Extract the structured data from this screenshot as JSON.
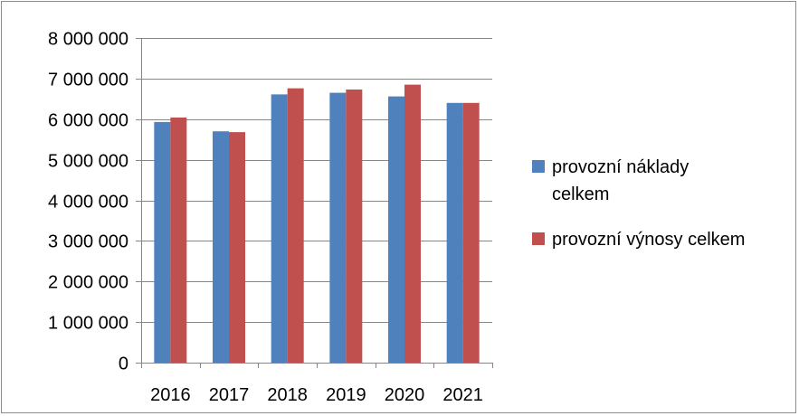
{
  "chart_data": {
    "type": "bar",
    "title": "",
    "xlabel": "",
    "ylabel": "",
    "categories": [
      "2016",
      "2017",
      "2018",
      "2019",
      "2020",
      "2021"
    ],
    "series": [
      {
        "name": "provozní náklady celkem",
        "color": "#4f81bd",
        "values": [
          5930000,
          5700000,
          6610000,
          6650000,
          6560000,
          6400000
        ]
      },
      {
        "name": "provozní výnosy celkem",
        "color": "#c0504d",
        "values": [
          6040000,
          5680000,
          6760000,
          6730000,
          6850000,
          6400000
        ]
      }
    ],
    "ylim": [
      0,
      8000000
    ],
    "yticks": [
      0,
      1000000,
      2000000,
      3000000,
      4000000,
      5000000,
      6000000,
      7000000,
      8000000
    ],
    "ytick_labels": [
      "0",
      "1 000 000",
      "2 000 000",
      "3 000 000",
      "4 000 000",
      "5 000 000",
      "6 000 000",
      "7 000 000",
      "8 000 000"
    ],
    "grid": true,
    "legend_position": "right",
    "legend_lines": [
      [
        "provozní náklady",
        "celkem"
      ],
      [
        "provozní výnosy celkem"
      ]
    ]
  }
}
